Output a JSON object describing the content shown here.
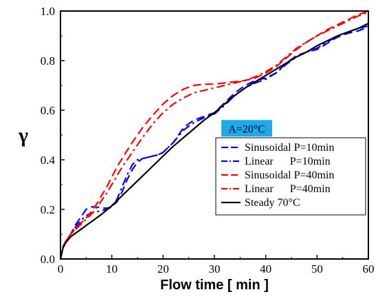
{
  "chart_data": {
    "type": "line",
    "title": "",
    "xlabel": "Flow time [ min ]",
    "ylabel": "γ",
    "xlim": [
      0,
      60
    ],
    "ylim": [
      0,
      1.0
    ],
    "xticks": [
      "0",
      "10",
      "20",
      "30",
      "40",
      "50",
      "60"
    ],
    "yticks": [
      "0.0",
      "0.2",
      "0.4",
      "0.6",
      "0.8",
      "1.0"
    ],
    "annotation": {
      "text": "A=20°C",
      "background": "#1fa8ea"
    },
    "legend_position": "bottom-right",
    "series": [
      {
        "name": "Sinusoidal P=10min",
        "color": "#0000ff",
        "style": "dashed",
        "x": [
          0,
          0.5,
          1,
          2,
          3,
          4,
          5,
          6,
          7,
          8,
          9,
          10,
          11,
          12,
          13,
          14,
          15,
          16,
          17,
          18,
          19,
          20,
          22,
          24,
          26,
          28,
          30,
          32,
          34,
          36,
          38,
          40,
          42,
          44,
          46,
          48,
          50,
          52,
          54,
          56,
          58,
          60
        ],
        "y": [
          0,
          0.05,
          0.07,
          0.1,
          0.14,
          0.17,
          0.2,
          0.21,
          0.21,
          0.205,
          0.205,
          0.21,
          0.23,
          0.27,
          0.32,
          0.36,
          0.39,
          0.405,
          0.41,
          0.415,
          0.42,
          0.43,
          0.47,
          0.53,
          0.56,
          0.575,
          0.59,
          0.63,
          0.67,
          0.7,
          0.72,
          0.73,
          0.75,
          0.79,
          0.82,
          0.835,
          0.845,
          0.87,
          0.895,
          0.91,
          0.92,
          0.935
        ]
      },
      {
        "name": "Linear      P=10min",
        "color": "#0000ff",
        "style": "dashdot",
        "x": [
          0,
          0.5,
          1,
          2,
          3,
          4,
          5,
          6,
          7,
          8,
          9,
          10,
          11,
          12,
          13,
          14,
          15,
          16,
          17,
          18,
          19,
          20,
          22,
          24,
          26,
          28,
          30,
          32,
          34,
          36,
          38,
          40,
          42,
          44,
          46,
          48,
          50,
          52,
          54,
          56,
          58,
          60
        ],
        "y": [
          0,
          0.05,
          0.07,
          0.1,
          0.13,
          0.155,
          0.175,
          0.185,
          0.19,
          0.195,
          0.2,
          0.21,
          0.24,
          0.29,
          0.34,
          0.38,
          0.4,
          0.405,
          0.41,
          0.415,
          0.42,
          0.43,
          0.47,
          0.52,
          0.55,
          0.57,
          0.585,
          0.62,
          0.66,
          0.69,
          0.71,
          0.725,
          0.75,
          0.785,
          0.815,
          0.835,
          0.85,
          0.875,
          0.9,
          0.915,
          0.93,
          0.94
        ]
      },
      {
        "name": "Sinusoidal P=40min",
        "color": "#ff0000",
        "style": "dashed",
        "x": [
          0,
          0.5,
          1,
          2,
          3,
          4,
          5,
          6,
          7,
          8,
          9,
          10,
          11,
          12,
          14,
          16,
          18,
          20,
          22,
          24,
          26,
          28,
          30,
          32,
          34,
          36,
          38,
          40,
          42,
          44,
          46,
          48,
          50,
          52,
          54,
          56,
          58,
          60
        ],
        "y": [
          0,
          0.05,
          0.07,
          0.1,
          0.125,
          0.145,
          0.165,
          0.19,
          0.22,
          0.255,
          0.29,
          0.33,
          0.37,
          0.405,
          0.47,
          0.53,
          0.58,
          0.625,
          0.66,
          0.685,
          0.7,
          0.705,
          0.705,
          0.71,
          0.715,
          0.72,
          0.73,
          0.75,
          0.775,
          0.81,
          0.845,
          0.875,
          0.9,
          0.925,
          0.945,
          0.965,
          0.985,
          1.0
        ]
      },
      {
        "name": "Linear      P=40min",
        "color": "#ff0000",
        "style": "dashdot",
        "x": [
          0,
          0.5,
          1,
          2,
          3,
          4,
          5,
          6,
          7,
          8,
          9,
          10,
          11,
          12,
          14,
          16,
          18,
          20,
          22,
          24,
          26,
          28,
          30,
          32,
          34,
          36,
          38,
          40,
          42,
          44,
          46,
          48,
          50,
          52,
          54,
          56,
          58,
          60
        ],
        "y": [
          0,
          0.05,
          0.07,
          0.1,
          0.12,
          0.14,
          0.16,
          0.18,
          0.205,
          0.235,
          0.265,
          0.3,
          0.335,
          0.37,
          0.43,
          0.49,
          0.545,
          0.59,
          0.625,
          0.65,
          0.67,
          0.68,
          0.69,
          0.7,
          0.71,
          0.72,
          0.735,
          0.755,
          0.78,
          0.815,
          0.85,
          0.875,
          0.9,
          0.92,
          0.94,
          0.96,
          0.98,
          0.995
        ]
      },
      {
        "name": "Steady 70°C",
        "color": "#000000",
        "style": "solid",
        "x": [
          0,
          0.5,
          1,
          2,
          3,
          4,
          5,
          6,
          8,
          10,
          12,
          14,
          16,
          18,
          20,
          22,
          24,
          26,
          28,
          30,
          32,
          34,
          36,
          38,
          40,
          42,
          44,
          46,
          48,
          50,
          52,
          54,
          56,
          58,
          60
        ],
        "y": [
          0,
          0.045,
          0.065,
          0.09,
          0.105,
          0.12,
          0.135,
          0.15,
          0.18,
          0.215,
          0.255,
          0.295,
          0.335,
          0.375,
          0.415,
          0.455,
          0.49,
          0.525,
          0.56,
          0.59,
          0.625,
          0.66,
          0.69,
          0.715,
          0.74,
          0.765,
          0.79,
          0.815,
          0.835,
          0.86,
          0.88,
          0.9,
          0.915,
          0.93,
          0.95
        ]
      }
    ]
  }
}
